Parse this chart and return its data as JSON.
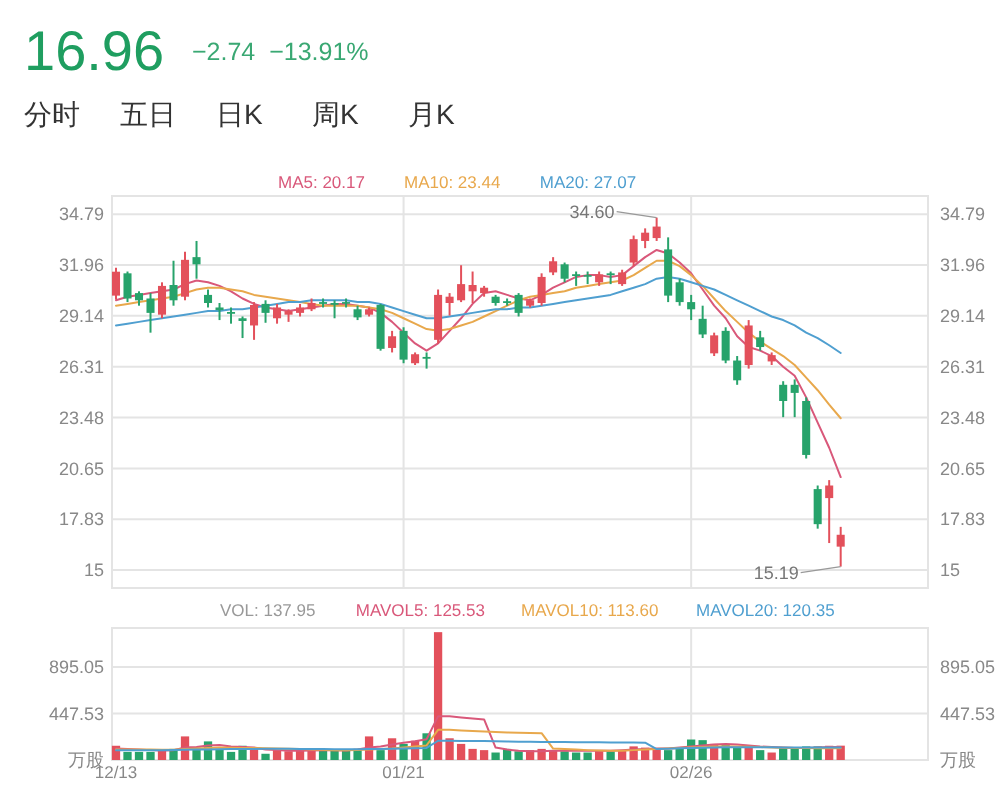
{
  "chart_data": [
    {
      "type": "other",
      "title": "16.96",
      "subtitle": "−2.74  −13.91%",
      "annotations": [
        "分时",
        "五日",
        "日K",
        "周K",
        "月K"
      ]
    },
    {
      "type": "candlestick",
      "legend": "top",
      "grid": true,
      "tick_labels": "y",
      "categories": [
        null,
        null,
        null,
        null,
        null,
        null,
        null,
        null,
        null,
        null,
        null,
        null,
        null,
        null,
        null,
        null,
        null,
        null,
        null,
        null,
        null,
        null,
        null,
        null,
        null,
        null,
        null,
        null,
        null,
        null,
        null,
        null,
        null,
        null,
        null,
        null,
        null,
        null,
        null,
        null,
        null,
        null,
        null,
        null,
        null,
        null,
        null,
        null,
        null,
        null,
        null,
        null,
        null,
        null,
        null,
        null,
        null,
        null,
        null,
        null,
        null,
        null,
        null,
        null
      ],
      "ylim": [
        14.0,
        35.8
      ],
      "yticks": [
        15.0,
        17.83,
        20.65,
        23.48,
        26.31,
        29.14,
        31.96,
        34.79
      ],
      "y2lim": [
        14.0,
        35.8
      ],
      "y2ticks": [
        15.0,
        17.83,
        20.65,
        23.48,
        26.31,
        29.14,
        31.96,
        34.79
      ],
      "ohlc": [
        [
          30.26,
          31.81,
          30.04,
          31.59
        ],
        [
          31.5,
          31.6,
          29.9,
          30.1
        ],
        [
          30.4,
          30.5,
          29.7,
          30.0
        ],
        [
          30.1,
          30.4,
          28.2,
          29.3
        ],
        [
          29.2,
          31.0,
          29.0,
          30.8
        ],
        [
          30.85,
          32.2,
          29.7,
          30.0
        ],
        [
          30.2,
          32.7,
          30.0,
          32.25
        ],
        [
          32.4,
          33.3,
          31.2,
          32.0
        ],
        [
          30.3,
          30.6,
          29.6,
          29.85
        ],
        [
          29.6,
          29.85,
          28.9,
          29.45
        ],
        [
          29.35,
          29.6,
          28.7,
          29.25
        ],
        [
          29.0,
          29.1,
          27.9,
          28.85
        ],
        [
          28.6,
          29.9,
          27.8,
          29.74
        ],
        [
          29.8,
          30.0,
          28.75,
          29.3
        ],
        [
          29.0,
          29.8,
          28.7,
          29.6
        ],
        [
          29.2,
          29.5,
          28.8,
          29.4
        ],
        [
          29.3,
          29.8,
          29.1,
          29.6
        ],
        [
          29.5,
          30.1,
          29.4,
          29.85
        ],
        [
          29.9,
          30.1,
          29.6,
          29.8
        ],
        [
          29.85,
          30.0,
          29.0,
          29.75
        ],
        [
          29.9,
          30.1,
          29.6,
          29.85
        ],
        [
          29.5,
          29.7,
          28.9,
          29.05
        ],
        [
          29.2,
          29.6,
          29.1,
          29.5
        ],
        [
          29.74,
          29.8,
          27.2,
          27.3
        ],
        [
          27.35,
          28.3,
          27.1,
          28.0
        ],
        [
          28.3,
          28.5,
          26.5,
          26.7
        ],
        [
          26.5,
          27.1,
          26.4,
          27.0
        ],
        [
          26.85,
          27.1,
          26.2,
          26.75
        ],
        [
          27.8,
          30.6,
          27.6,
          30.3
        ],
        [
          29.85,
          30.4,
          29.15,
          30.2
        ],
        [
          30.0,
          31.95,
          29.9,
          30.9
        ],
        [
          30.5,
          31.6,
          29.85,
          30.85
        ],
        [
          30.4,
          30.8,
          30.2,
          30.7
        ],
        [
          30.2,
          30.3,
          29.7,
          29.85
        ],
        [
          29.95,
          30.1,
          29.7,
          29.85
        ],
        [
          30.3,
          30.4,
          29.1,
          29.3
        ],
        [
          29.7,
          30.1,
          29.6,
          30.0
        ],
        [
          29.85,
          31.5,
          29.7,
          31.3
        ],
        [
          31.55,
          32.4,
          31.4,
          32.17
        ],
        [
          32.0,
          32.1,
          31.0,
          31.2
        ],
        [
          31.45,
          31.6,
          30.8,
          31.35
        ],
        [
          31.4,
          31.6,
          30.9,
          31.35
        ],
        [
          31.0,
          31.6,
          30.8,
          31.44
        ],
        [
          31.5,
          31.6,
          30.9,
          31.4
        ],
        [
          30.9,
          31.7,
          30.8,
          31.55
        ],
        [
          32.1,
          33.6,
          31.9,
          33.4
        ],
        [
          33.3,
          34.0,
          32.9,
          33.76
        ],
        [
          33.46,
          34.6,
          33.3,
          34.1
        ],
        [
          32.83,
          33.5,
          29.9,
          30.26
        ],
        [
          31.0,
          31.2,
          29.7,
          29.9
        ],
        [
          29.9,
          30.3,
          28.9,
          29.5
        ],
        [
          28.97,
          29.7,
          27.9,
          28.1
        ],
        [
          27.05,
          28.2,
          26.9,
          28.05
        ],
        [
          28.3,
          28.5,
          26.5,
          26.65
        ],
        [
          26.65,
          26.9,
          25.3,
          25.55
        ],
        [
          26.4,
          28.9,
          26.2,
          28.6
        ],
        [
          27.94,
          28.3,
          27.2,
          27.4
        ],
        [
          26.6,
          27.1,
          26.4,
          26.95
        ],
        [
          25.3,
          25.5,
          23.5,
          24.4
        ],
        [
          25.3,
          25.6,
          23.5,
          24.85
        ],
        [
          24.4,
          24.6,
          21.2,
          21.4
        ],
        [
          19.5,
          19.7,
          17.3,
          17.55
        ],
        [
          19.0,
          20.0,
          16.5,
          19.7
        ],
        [
          16.3,
          17.4,
          15.19,
          16.96
        ]
      ],
      "colors": [
        "#e3505b",
        "#27a36b",
        "#27a36b",
        "#27a36b",
        "#e3505b",
        "#27a36b",
        "#e3505b",
        "#27a36b",
        "#27a36b",
        "#27a36b",
        "#27a36b",
        "#27a36b",
        "#e3505b",
        "#27a36b",
        "#e3505b",
        "#e3505b",
        "#e3505b",
        "#e3505b",
        "#27a36b",
        "#27a36b",
        "#27a36b",
        "#27a36b",
        "#e3505b",
        "#27a36b",
        "#e3505b",
        "#27a36b",
        "#e3505b",
        "#27a36b",
        "#e3505b",
        "#e3505b",
        "#e3505b",
        "#e3505b",
        "#e3505b",
        "#27a36b",
        "#27a36b",
        "#27a36b",
        "#e3505b",
        "#e3505b",
        "#e3505b",
        "#27a36b",
        "#27a36b",
        "#27a36b",
        "#e3505b",
        "#27a36b",
        "#e3505b",
        "#e3505b",
        "#e3505b",
        "#e3505b",
        "#27a36b",
        "#27a36b",
        "#27a36b",
        "#27a36b",
        "#e3505b",
        "#27a36b",
        "#27a36b",
        "#e3505b",
        "#27a36b",
        "#e3505b",
        "#27a36b",
        "#27a36b",
        "#27a36b",
        "#27a36b",
        "#e3505b",
        "#e3505b"
      ],
      "series": [
        {
          "name": "MA5: 20.17",
          "type": "line",
          "color": "#d9587a",
          "values": [
            30.0,
            30.2,
            30.3,
            30.4,
            30.5,
            30.6,
            30.9,
            31.1,
            31.0,
            30.8,
            30.5,
            30.1,
            29.8,
            29.6,
            29.5,
            29.4,
            29.5,
            29.6,
            29.7,
            29.8,
            29.8,
            29.7,
            29.6,
            29.3,
            28.8,
            28.2,
            27.6,
            27.2,
            27.6,
            28.3,
            29.0,
            29.8,
            30.4,
            30.5,
            30.3,
            30.1,
            30.0,
            30.3,
            30.7,
            31.0,
            31.3,
            31.4,
            31.4,
            31.3,
            31.4,
            31.9,
            32.4,
            32.8,
            32.6,
            32.1,
            31.5,
            30.6,
            29.7,
            29.0,
            28.0,
            27.4,
            27.2,
            26.9,
            26.3,
            25.8,
            24.6,
            23.2,
            21.8,
            20.17
          ]
        },
        {
          "name": "MA10: 23.44",
          "type": "line",
          "color": "#e8a84c",
          "values": [
            29.7,
            29.8,
            29.9,
            30.0,
            30.1,
            30.2,
            30.4,
            30.6,
            30.7,
            30.7,
            30.6,
            30.5,
            30.3,
            30.2,
            30.1,
            30.0,
            29.9,
            29.8,
            29.7,
            29.7,
            29.7,
            29.7,
            29.6,
            29.5,
            29.3,
            29.0,
            28.7,
            28.4,
            28.3,
            28.4,
            28.6,
            28.8,
            29.1,
            29.4,
            29.7,
            30.0,
            30.2,
            30.3,
            30.4,
            30.5,
            30.7,
            30.8,
            30.9,
            31.0,
            31.1,
            31.4,
            31.8,
            32.2,
            32.2,
            31.9,
            31.4,
            30.8,
            30.1,
            29.4,
            28.8,
            28.2,
            27.7,
            27.3,
            26.9,
            26.4,
            25.7,
            25.0,
            24.2,
            23.44
          ]
        },
        {
          "name": "MA20: 27.07",
          "type": "line",
          "color": "#4f9fd0",
          "values": [
            28.6,
            28.7,
            28.8,
            28.9,
            29.0,
            29.1,
            29.2,
            29.3,
            29.4,
            29.4,
            29.5,
            29.5,
            29.6,
            29.7,
            29.8,
            29.9,
            29.9,
            30.0,
            30.0,
            30.0,
            30.0,
            29.9,
            29.9,
            29.8,
            29.6,
            29.4,
            29.2,
            29.0,
            29.0,
            29.1,
            29.2,
            29.3,
            29.4,
            29.5,
            29.5,
            29.6,
            29.6,
            29.7,
            29.8,
            29.9,
            30.0,
            30.1,
            30.2,
            30.3,
            30.5,
            30.7,
            30.9,
            31.2,
            31.3,
            31.2,
            31.0,
            30.8,
            30.6,
            30.3,
            30.0,
            29.7,
            29.4,
            29.1,
            28.9,
            28.6,
            28.2,
            27.9,
            27.5,
            27.07
          ]
        }
      ],
      "annotations": [
        "34.60",
        "15.19"
      ]
    },
    {
      "type": "bar",
      "legend": "top",
      "grid": true,
      "annotations": [
        "VOL: 137.95"
      ],
      "categories": [
        "12/13",
        null,
        null,
        null,
        null,
        null,
        null,
        null,
        null,
        null,
        null,
        null,
        null,
        null,
        null,
        null,
        null,
        null,
        null,
        null,
        null,
        null,
        null,
        null,
        null,
        "01/21",
        null,
        null,
        null,
        null,
        null,
        null,
        null,
        null,
        null,
        null,
        null,
        null,
        null,
        null,
        null,
        null,
        null,
        null,
        null,
        null,
        null,
        null,
        null,
        null,
        "02/26",
        null,
        null,
        null,
        null,
        null,
        null,
        null,
        null,
        null,
        null,
        null,
        null,
        null
      ],
      "ylim": [
        0,
        1270
      ],
      "yticks": [
        {
          "value": 0,
          "label": "万股"
        },
        447.53,
        895.05
      ],
      "y2lim": [
        0,
        1270
      ],
      "y2ticks": [
        {
          "value": 0,
          "label": "万股"
        },
        447.53,
        895.05
      ],
      "series": [
        {
          "type": "bar",
          "color": "#999999",
          "values": [
            137,
            78,
            78,
            78,
            95,
            107,
            227,
            119,
            179,
            107,
            78,
            137,
            119,
            60,
            95,
            84,
            95,
            95,
            95,
            95,
            95,
            107,
            227,
            95,
            209,
            155,
            185,
            257,
            1230,
            209,
            155,
            107,
            95,
            72,
            107,
            84,
            95,
            107,
            95,
            84,
            72,
            72,
            95,
            84,
            95,
            131,
            119,
            107,
            95,
            119,
            197,
            191,
            155,
            143,
            119,
            143,
            95,
            72,
            119,
            119,
            131,
            131,
            137,
            137.95
          ],
          "colors": [
            "#e3505b",
            "#27a36b",
            "#27a36b",
            "#27a36b",
            "#e3505b",
            "#27a36b",
            "#e3505b",
            "#27a36b",
            "#27a36b",
            "#27a36b",
            "#27a36b",
            "#27a36b",
            "#e3505b",
            "#27a36b",
            "#e3505b",
            "#e3505b",
            "#e3505b",
            "#e3505b",
            "#27a36b",
            "#27a36b",
            "#27a36b",
            "#27a36b",
            "#e3505b",
            "#27a36b",
            "#e3505b",
            "#27a36b",
            "#e3505b",
            "#27a36b",
            "#e3505b",
            "#e3505b",
            "#e3505b",
            "#e3505b",
            "#e3505b",
            "#27a36b",
            "#27a36b",
            "#27a36b",
            "#e3505b",
            "#e3505b",
            "#e3505b",
            "#27a36b",
            "#27a36b",
            "#27a36b",
            "#e3505b",
            "#27a36b",
            "#e3505b",
            "#e3505b",
            "#e3505b",
            "#e3505b",
            "#27a36b",
            "#27a36b",
            "#27a36b",
            "#27a36b",
            "#e3505b",
            "#27a36b",
            "#27a36b",
            "#e3505b",
            "#27a36b",
            "#e3505b",
            "#27a36b",
            "#27a36b",
            "#27a36b",
            "#27a36b",
            "#e3505b",
            "#e3505b"
          ]
        },
        {
          "name": "MAVOL5: 125.53",
          "type": "line",
          "color": "#d9587a",
          "values": [
            110,
            105,
            100,
            95,
            92,
            95,
            120,
            125,
            140,
            145,
            130,
            125,
            120,
            100,
            95,
            90,
            90,
            92,
            95,
            95,
            92,
            100,
            120,
            130,
            150,
            165,
            180,
            200,
            420,
            420,
            410,
            400,
            390,
            120,
            100,
            90,
            85,
            85,
            90,
            90,
            88,
            88,
            90,
            90,
            95,
            100,
            105,
            110,
            110,
            120,
            130,
            140,
            150,
            155,
            150,
            140,
            130,
            125,
            120,
            115,
            115,
            120,
            125,
            125.53
          ]
        },
        {
          "name": "MAVOL10: 113.60",
          "type": "line",
          "color": "#e8a84c",
          "values": [
            100,
            100,
            100,
            100,
            98,
            98,
            105,
            110,
            115,
            120,
            118,
            115,
            115,
            112,
            110,
            108,
            105,
            100,
            98,
            95,
            95,
            97,
            100,
            105,
            110,
            120,
            130,
            140,
            290,
            290,
            285,
            280,
            275,
            270,
            265,
            262,
            260,
            258,
            110,
            105,
            100,
            95,
            92,
            90,
            90,
            95,
            100,
            105,
            110,
            115,
            120,
            125,
            130,
            130,
            130,
            128,
            125,
            120,
            118,
            115,
            115,
            114,
            114,
            113.6
          ]
        },
        {
          "name": "MAVOL20: 120.35",
          "type": "line",
          "color": "#4f9fd0",
          "values": [
            95,
            95,
            95,
            95,
            95,
            96,
            98,
            100,
            102,
            104,
            105,
            106,
            107,
            108,
            108,
            108,
            107,
            106,
            105,
            104,
            104,
            104,
            105,
            106,
            108,
            110,
            113,
            116,
            185,
            185,
            184,
            183,
            182,
            180,
            178,
            176,
            175,
            174,
            173,
            172,
            171,
            170,
            170,
            169,
            168,
            168,
            167,
            105,
            108,
            112,
            115,
            118,
            120,
            122,
            123,
            123,
            122,
            122,
            121,
            121,
            121,
            120,
            120,
            120.35
          ]
        }
      ]
    }
  ]
}
